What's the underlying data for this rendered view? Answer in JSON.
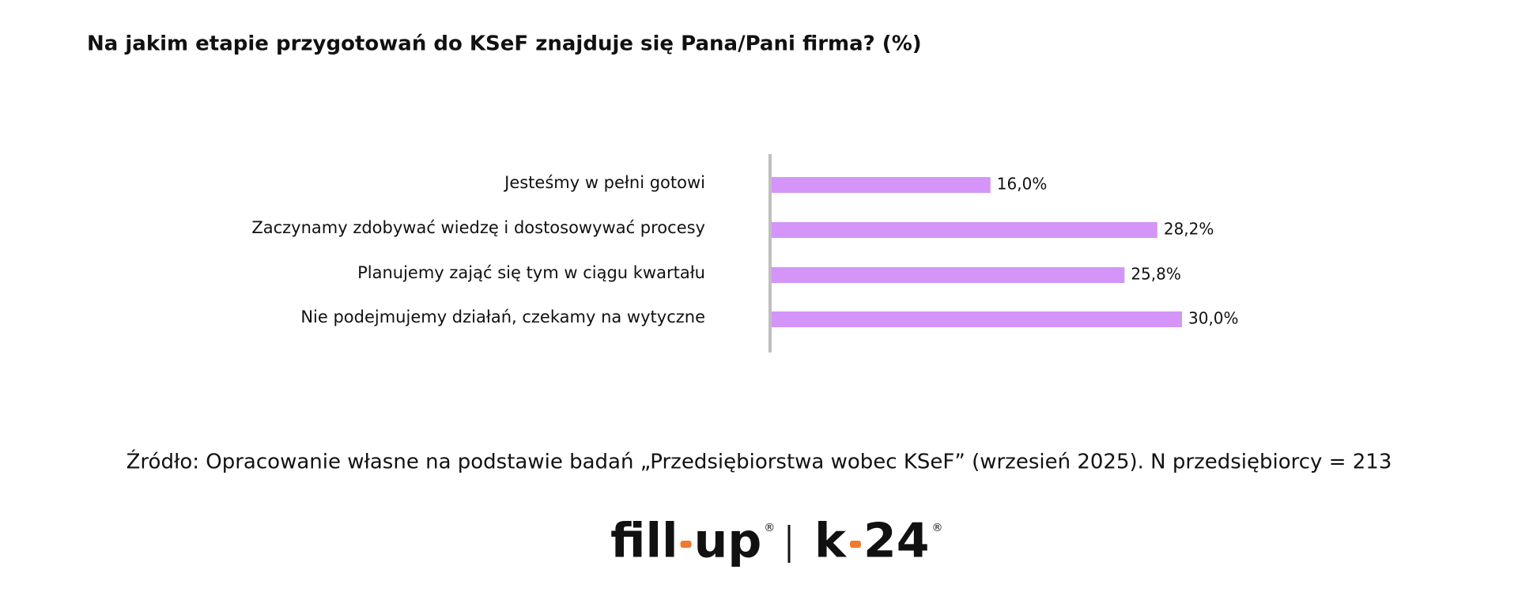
{
  "chart_data": {
    "type": "hbar",
    "title": "Na jakim etapie przygotowań do KSeF znajduje się Pana/Pani firma? (%)",
    "categories": [
      "Jesteśmy w pełni gotowi",
      "Zaczynamy zdobywać wiedzę i dostosowywać procesy",
      "Planujemy zająć się tym w ciągu kwartału",
      "Nie podejmujemy działań, czekamy na wytyczne"
    ],
    "values": [
      16.0,
      28.2,
      25.8,
      30.0
    ],
    "value_labels": [
      "16,0%",
      "28,2%",
      "25,8%",
      "30,0%"
    ],
    "color": "#d595f8",
    "source": "Źródło: Opracowanie własne na podstawie badań „Przedsiębiorstwa wobec KSeF” (wrzesień 2025). N przedsiębiorcy = 213"
  },
  "logo": {
    "brand1": [
      "fill",
      "up"
    ],
    "brand2": [
      "k",
      "24"
    ],
    "mark": "®"
  }
}
